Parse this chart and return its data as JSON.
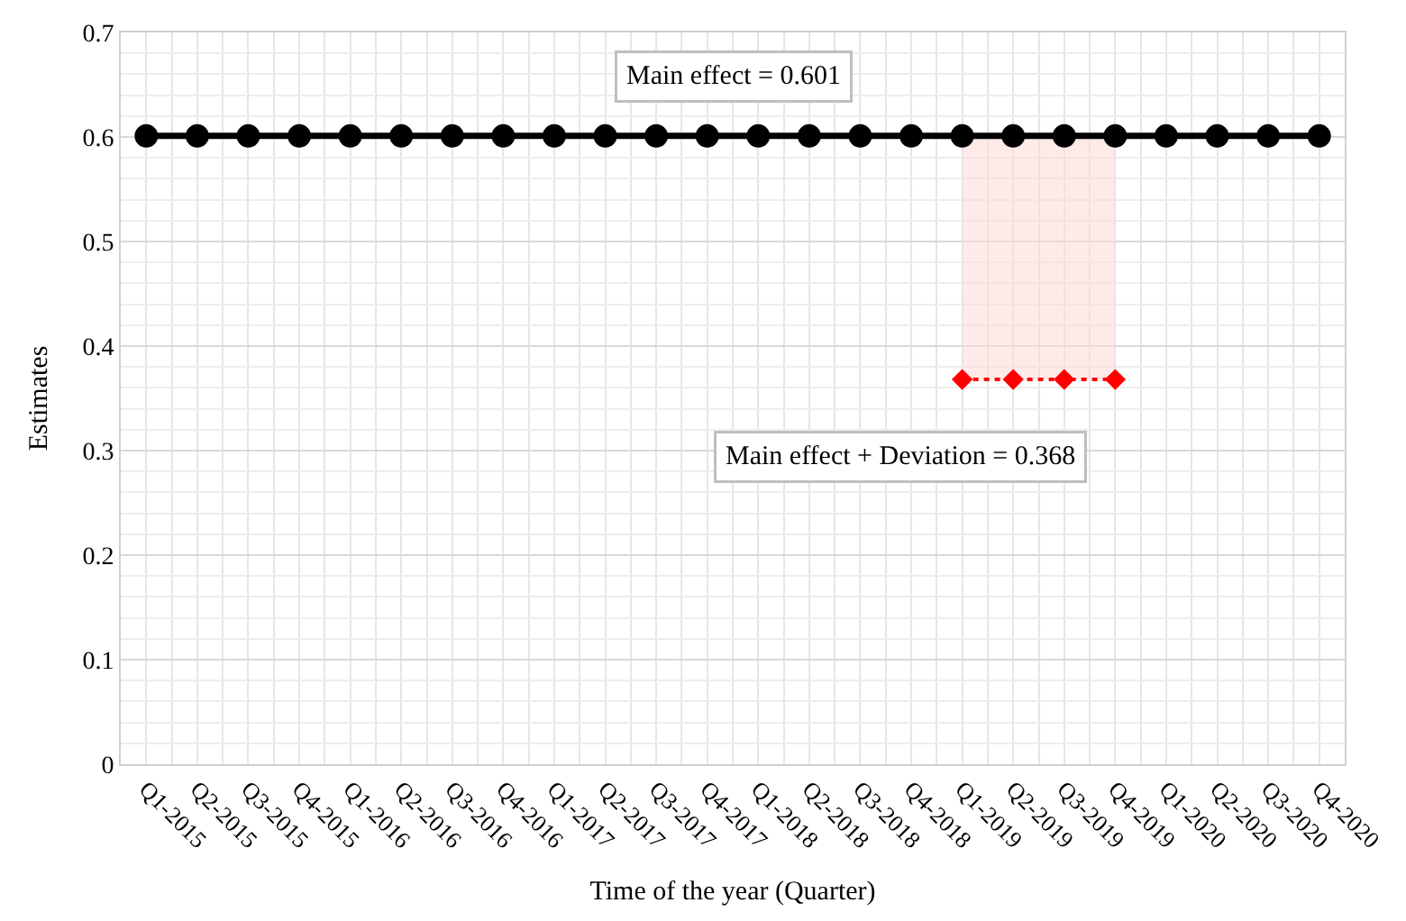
{
  "chart_data": {
    "type": "line",
    "xlabel": "Time of the year (Quarter)",
    "ylabel": "Estimates",
    "categories": [
      "Q1-2015",
      "Q2-2015",
      "Q3-2015",
      "Q4-2015",
      "Q1-2016",
      "Q2-2016",
      "Q3-2016",
      "Q4-2016",
      "Q1-2017",
      "Q2-2017",
      "Q3-2017",
      "Q4-2017",
      "Q1-2018",
      "Q2-2018",
      "Q3-2018",
      "Q4-2018",
      "Q1-2019",
      "Q2-2019",
      "Q3-2019",
      "Q4-2019",
      "Q1-2020",
      "Q2-2020",
      "Q3-2020",
      "Q4-2020"
    ],
    "series": [
      {
        "color": "#000000",
        "marker": "circle",
        "line_style": "solid",
        "values": [
          0.601,
          0.601,
          0.601,
          0.601,
          0.601,
          0.601,
          0.601,
          0.601,
          0.601,
          0.601,
          0.601,
          0.601,
          0.601,
          0.601,
          0.601,
          0.601,
          0.601,
          0.601,
          0.601,
          0.601,
          0.601,
          0.601,
          0.601,
          0.601
        ]
      },
      {
        "color": "#ff0000",
        "marker": "diamond",
        "line_style": "dotted",
        "values": [
          null,
          null,
          null,
          null,
          null,
          null,
          null,
          null,
          null,
          null,
          null,
          null,
          null,
          null,
          null,
          null,
          0.368,
          0.368,
          0.368,
          0.368,
          null,
          null,
          null,
          null
        ],
        "lower": [
          null,
          null,
          null,
          null,
          null,
          null,
          null,
          null,
          null,
          null,
          null,
          null,
          null,
          null,
          null,
          null,
          0.368,
          0.368,
          0.368,
          0.368,
          null,
          null,
          null,
          null
        ],
        "upper": [
          null,
          null,
          null,
          null,
          null,
          null,
          null,
          null,
          null,
          null,
          null,
          null,
          null,
          null,
          null,
          null,
          0.601,
          0.601,
          0.601,
          0.601,
          null,
          null,
          null,
          null
        ]
      }
    ],
    "ylim": [
      0,
      0.7
    ],
    "yticks": [
      0,
      0.1,
      0.2,
      0.3,
      0.4,
      0.5,
      0.6,
      0.7
    ],
    "grid": true,
    "annotations": [
      "Main effect = 0.601",
      "Main effect + Deviation = 0.368"
    ]
  }
}
